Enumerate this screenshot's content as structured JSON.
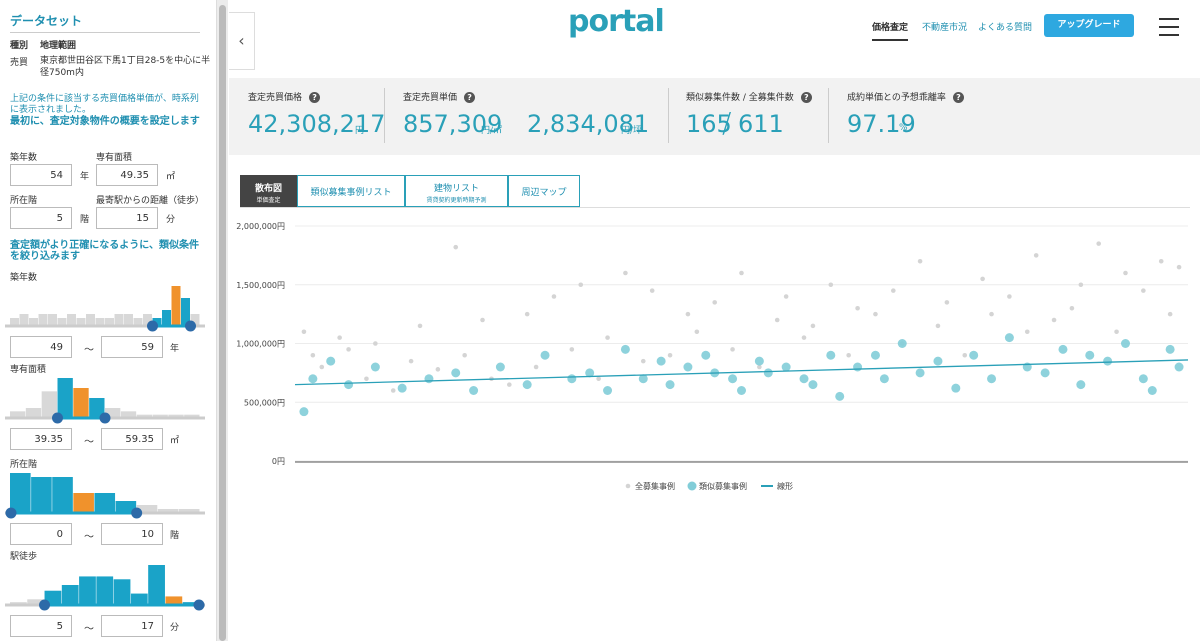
{
  "sidebar": {
    "title": "データセット",
    "table_header": [
      "種別",
      "地理範囲"
    ],
    "table_row": [
      "売買",
      "東京都世田谷区下馬1丁目28-5を中心に半径750m内"
    ],
    "note": "上記の条件に該当する売買価格単価が、時系列に表示されました。",
    "section1": "最初に、査定対象物件の概要を設定します",
    "fields": [
      {
        "label": "築年数",
        "value": 54,
        "unit": "年"
      },
      {
        "label": "専有面積",
        "value": 49.35,
        "unit": "㎡"
      },
      {
        "label": "所在階",
        "value": 5,
        "unit": "階"
      },
      {
        "label": "最寄駅からの距離（徒歩）",
        "value": 15,
        "unit": "分"
      }
    ],
    "section2": "査定額がより正確になるように、類似条件を絞り込みます",
    "range_sep": "〜",
    "filters": [
      {
        "label": "築年数",
        "min": 49,
        "max": 59,
        "unit": "年",
        "histogram": [
          2,
          3,
          2,
          3,
          3,
          2,
          3,
          2,
          3,
          2,
          2,
          3,
          3,
          2,
          3,
          2,
          4,
          10,
          7,
          3
        ],
        "active": [
          15,
          18
        ],
        "highlight": 17
      },
      {
        "label": "専有面積",
        "min": 39.35,
        "max": 59.35,
        "unit": "㎡",
        "histogram": [
          2,
          3,
          8,
          12,
          9,
          6,
          3,
          2,
          1,
          1,
          1,
          1
        ],
        "active": [
          3,
          5
        ],
        "highlight": 4
      },
      {
        "label": "所在階",
        "min": 0,
        "max": 10,
        "unit": "階",
        "histogram": [
          10,
          9,
          9,
          5,
          5,
          3,
          2,
          1,
          1
        ],
        "active": [
          0,
          5
        ],
        "highlight": 3
      },
      {
        "label": "駅徒歩",
        "min": 5,
        "max": 17,
        "unit": "分",
        "histogram": [
          1,
          2,
          5,
          7,
          10,
          10,
          9,
          4,
          14,
          3,
          1
        ],
        "active": [
          2,
          10
        ],
        "highlight": 9
      }
    ]
  },
  "header": {
    "logo": "portal",
    "nav": [
      "価格査定",
      "不動産市況",
      "よくある質問"
    ],
    "button": "アップグレード"
  },
  "stats": [
    {
      "label": "査定売買価格",
      "value": "42,308,217",
      "unit": "円"
    },
    {
      "label": "査定売買単価",
      "value": "857,309",
      "unit": "円/㎡",
      "value2": "2,834,081",
      "unit2": "円/坪"
    },
    {
      "label": "類似募集件数 / 全募集件数",
      "value": "165",
      "sep": "/",
      "value2": "611"
    },
    {
      "label": "成約単価との予想乖離率",
      "value": "97.19",
      "unit": "%"
    }
  ],
  "tabs": [
    {
      "label": "散布図",
      "sub": "単価査定"
    },
    {
      "label": "類似募集事例リスト"
    },
    {
      "label": "建物リスト",
      "sub": "賃貸契約更新時期予測"
    },
    {
      "label": "周辺マップ"
    }
  ],
  "chart_data": {
    "type": "scatter",
    "xlim": [
      0,
      100
    ],
    "ylim": [
      0,
      2000000
    ],
    "yticks": [
      {
        "value": 0,
        "label": "0円"
      },
      {
        "value": 500000,
        "label": "500,000円"
      },
      {
        "value": 1000000,
        "label": "1,000,000円"
      },
      {
        "value": 1500000,
        "label": "1,500,000円"
      },
      {
        "value": 2000000,
        "label": "2,000,000円"
      }
    ],
    "grid": true,
    "series": [
      {
        "name": "全募集事例",
        "type": "scatter",
        "color": "#d4d4d4",
        "x": [
          1,
          2,
          3,
          5,
          6,
          8,
          9,
          11,
          13,
          14,
          16,
          18,
          19,
          21,
          22,
          24,
          26,
          27,
          29,
          31,
          32,
          34,
          35,
          37,
          39,
          40,
          42,
          44,
          45,
          47,
          49,
          50,
          52,
          54,
          55,
          57,
          58,
          60,
          62,
          63,
          65,
          67,
          68,
          70,
          72,
          73,
          75,
          77,
          78,
          80,
          82,
          83,
          85,
          87,
          88,
          90,
          92,
          93,
          95,
          97,
          98,
          99
        ],
        "values": [
          1100000,
          900000,
          800000,
          1050000,
          950000,
          700000,
          1000000,
          600000,
          850000,
          1150000,
          780000,
          1820000,
          900000,
          1200000,
          700000,
          650000,
          1250000,
          800000,
          1400000,
          950000,
          1500000,
          700000,
          1050000,
          1600000,
          850000,
          1450000,
          900000,
          1250000,
          1100000,
          1350000,
          950000,
          1600000,
          800000,
          1200000,
          1400000,
          1050000,
          1150000,
          1500000,
          900000,
          1300000,
          1250000,
          1450000,
          1000000,
          1700000,
          1150000,
          1350000,
          900000,
          1550000,
          1250000,
          1400000,
          1100000,
          1750000,
          1200000,
          1300000,
          1500000,
          1850000,
          1100000,
          1600000,
          1450000,
          1700000,
          1250000,
          1650000
        ]
      },
      {
        "name": "類似募集事例",
        "type": "scatter",
        "color": "#82cdd8",
        "x": [
          1,
          2,
          4,
          6,
          9,
          12,
          15,
          18,
          20,
          23,
          26,
          28,
          31,
          33,
          35,
          37,
          39,
          41,
          42,
          44,
          46,
          47,
          49,
          50,
          52,
          53,
          55,
          57,
          58,
          60,
          61,
          63,
          65,
          66,
          68,
          70,
          72,
          74,
          76,
          78,
          80,
          82,
          84,
          86,
          88,
          89,
          91,
          93,
          95,
          96,
          98,
          99
        ],
        "values": [
          420000,
          700000,
          850000,
          650000,
          800000,
          620000,
          700000,
          750000,
          600000,
          800000,
          650000,
          900000,
          700000,
          750000,
          600000,
          950000,
          700000,
          850000,
          650000,
          800000,
          900000,
          750000,
          700000,
          600000,
          850000,
          750000,
          800000,
          700000,
          650000,
          900000,
          550000,
          800000,
          900000,
          700000,
          1000000,
          750000,
          850000,
          620000,
          900000,
          700000,
          1050000,
          800000,
          750000,
          950000,
          650000,
          900000,
          850000,
          1000000,
          700000,
          600000,
          950000,
          800000
        ]
      },
      {
        "name": "線形",
        "type": "line",
        "color": "#2aa0b8",
        "x": [
          0,
          100
        ],
        "values": [
          650000,
          860000
        ]
      }
    ]
  }
}
